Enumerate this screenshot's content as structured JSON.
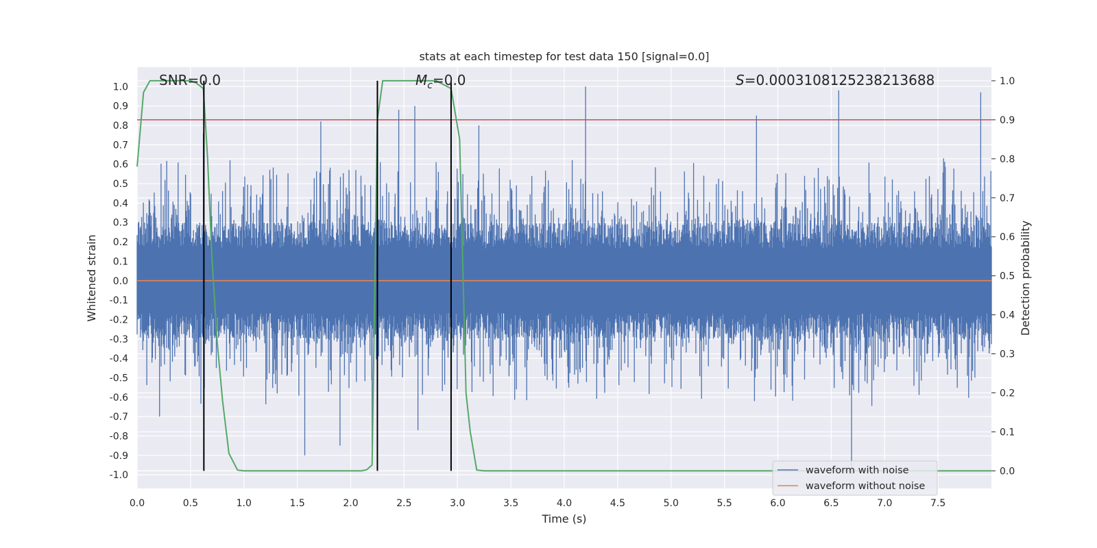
{
  "chart_data": {
    "type": "line",
    "title": "stats at each timestep for test data 150 [signal=0.0]",
    "xlabel": "Time (s)",
    "ylabel_left": "Whitened strain",
    "ylabel_right": "Detection probability",
    "xlim": [
      0.0,
      8.0
    ],
    "ylim_left": [
      -1.07,
      1.1
    ],
    "ylim_right": [
      -0.045,
      1.035
    ],
    "xticks": [
      "0.0",
      "0.5",
      "1.0",
      "1.5",
      "2.0",
      "2.5",
      "3.0",
      "3.5",
      "4.0",
      "4.5",
      "5.0",
      "5.5",
      "6.0",
      "6.5",
      "7.0",
      "7.5"
    ],
    "xtick_values": [
      0,
      0.5,
      1,
      1.5,
      2,
      2.5,
      3,
      3.5,
      4,
      4.5,
      5,
      5.5,
      6,
      6.5,
      7,
      7.5
    ],
    "yticks_left": [
      "1.0",
      "0.9",
      "0.8",
      "0.7",
      "0.6",
      "0.5",
      "0.4",
      "0.3",
      "0.2",
      "0.1",
      "0.0",
      "-0.1",
      "-0.2",
      "-0.3",
      "-0.4",
      "-0.5",
      "-0.6",
      "-0.7",
      "-0.8",
      "-0.9",
      "-1.0"
    ],
    "ytick_values_left": [
      1.0,
      0.9,
      0.8,
      0.7,
      0.6,
      0.5,
      0.4,
      0.3,
      0.2,
      0.1,
      0.0,
      -0.1,
      -0.2,
      -0.3,
      -0.4,
      -0.5,
      -0.6,
      -0.7,
      -0.8,
      -0.9,
      -1.0
    ],
    "yticks_right": [
      "1.0",
      "0.9",
      "0.8",
      "0.7",
      "0.6",
      "0.5",
      "0.4",
      "0.3",
      "0.2",
      "0.1",
      "0.0"
    ],
    "ytick_values_right": [
      1.0,
      0.9,
      0.8,
      0.7,
      0.6,
      0.5,
      0.4,
      0.3,
      0.2,
      0.1,
      0.0
    ],
    "annotations": {
      "snr_text": "SNR=0.0",
      "mc_symbol": "M",
      "mc_sub": "c",
      "mc_value": "=0.0",
      "s_symbol": "S",
      "s_value": "=0.0003108125238213688"
    },
    "threshold": {
      "value": 0.9,
      "axis": "right",
      "color": "#c44e52"
    },
    "vertical_lines": [
      0.625,
      2.25,
      2.94
    ],
    "series": [
      {
        "name": "waveform with noise",
        "color": "#4c72b0",
        "axis": "left",
        "style": "noise",
        "typical_envelope": 0.3,
        "peaks_pos": [
          [
            0.62,
            0.76
          ],
          [
            0.87,
            0.62
          ],
          [
            1.72,
            0.82
          ],
          [
            2.45,
            0.88
          ],
          [
            2.6,
            0.9
          ],
          [
            3.2,
            0.8
          ],
          [
            4.2,
            1.0
          ],
          [
            5.8,
            0.85
          ],
          [
            6.57,
            0.98
          ],
          [
            7.9,
            0.97
          ]
        ],
        "peaks_neg": [
          [
            0.21,
            -0.7
          ],
          [
            1.57,
            -0.9
          ],
          [
            1.9,
            -0.85
          ],
          [
            2.2,
            -0.85
          ],
          [
            2.63,
            -0.77
          ],
          [
            6.69,
            -1.0
          ]
        ]
      },
      {
        "name": "waveform without noise",
        "color": "#dd8452",
        "axis": "left",
        "x": [
          0.0,
          8.0
        ],
        "y": [
          0.0,
          0.0
        ]
      },
      {
        "name": "detection probability",
        "color": "#55a868",
        "axis": "right",
        "x": [
          0.0,
          0.06,
          0.12,
          0.25,
          0.5,
          0.55,
          0.62,
          0.66,
          0.7,
          0.75,
          0.8,
          0.86,
          0.94,
          1.0,
          2.1,
          2.15,
          2.2,
          2.25,
          2.3,
          2.35,
          2.8,
          2.94,
          3.02,
          3.08,
          3.12,
          3.18,
          3.25,
          8.0
        ],
        "y": [
          0.78,
          0.97,
          1.0,
          1.0,
          1.0,
          0.995,
          0.98,
          0.8,
          0.55,
          0.33,
          0.18,
          0.045,
          0.002,
          0.0,
          0.0,
          0.003,
          0.015,
          0.9,
          1.0,
          1.0,
          1.0,
          0.98,
          0.85,
          0.2,
          0.1,
          0.002,
          0.0,
          0.0
        ]
      }
    ],
    "legend": {
      "position": "lower-right",
      "entries": [
        {
          "label": "waveform with noise",
          "color": "#4c72b0"
        },
        {
          "label": "waveform without noise",
          "color": "#dd8452"
        }
      ]
    }
  }
}
